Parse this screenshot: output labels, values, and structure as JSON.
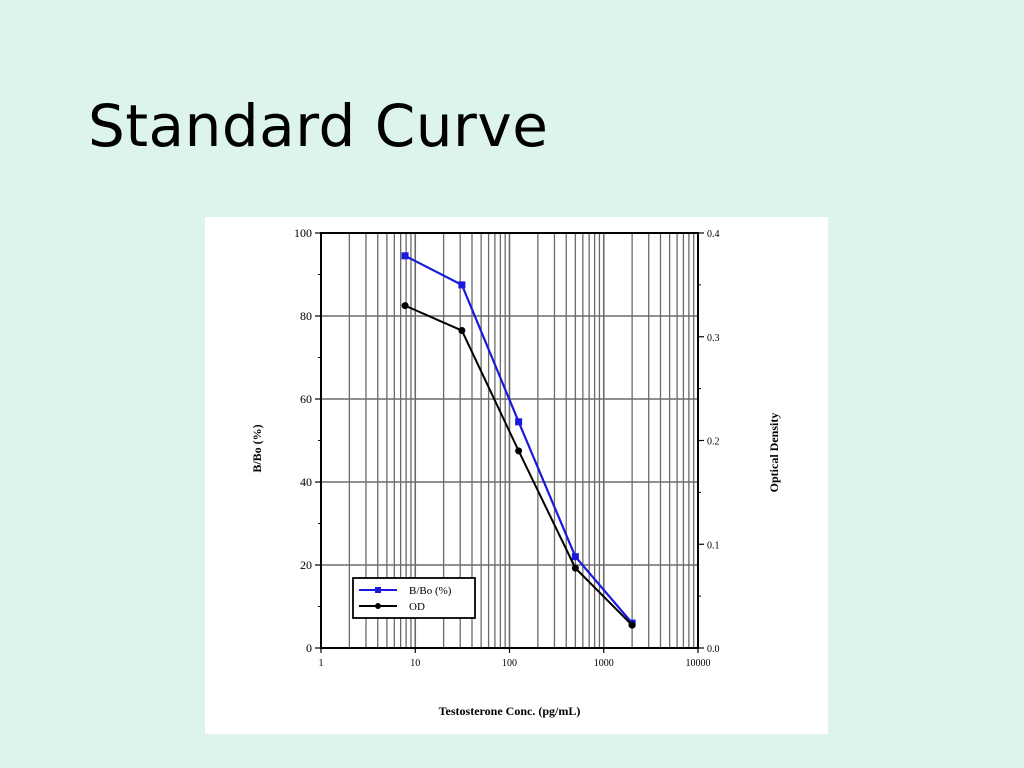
{
  "slide": {
    "title": "Standard Curve"
  },
  "chart_data": {
    "type": "line",
    "xlabel": "Testosterone Conc. (pg/mL)",
    "ylabel": "B/Bo (%)",
    "y2label": "Optical Density",
    "xscale": "log",
    "xlim": [
      1,
      10000
    ],
    "ylim": [
      0,
      100
    ],
    "y2lim": [
      0,
      0.4
    ],
    "x_ticks": [
      "1",
      "10",
      "100",
      "1000",
      "10000"
    ],
    "y_ticks": [
      "0",
      "20",
      "40",
      "60",
      "80",
      "100"
    ],
    "y2_ticks": [
      "0.0",
      "0.1",
      "0.2",
      "0.3",
      "0.4"
    ],
    "grid": true,
    "legend_position": "bottom-left",
    "series": [
      {
        "name": "B/Bo (%)",
        "axis": "left",
        "color": "#1a1adc",
        "marker": "square",
        "x": [
          7.8,
          31.25,
          125,
          500,
          2000
        ],
        "values": [
          94.5,
          87.5,
          54.5,
          22.0,
          6.0
        ]
      },
      {
        "name": "OD",
        "axis": "right",
        "color": "#000000",
        "marker": "circle",
        "x": [
          7.8,
          31.25,
          125,
          500,
          2000
        ],
        "values": [
          0.33,
          0.306,
          0.19,
          0.077,
          0.022
        ]
      }
    ]
  }
}
